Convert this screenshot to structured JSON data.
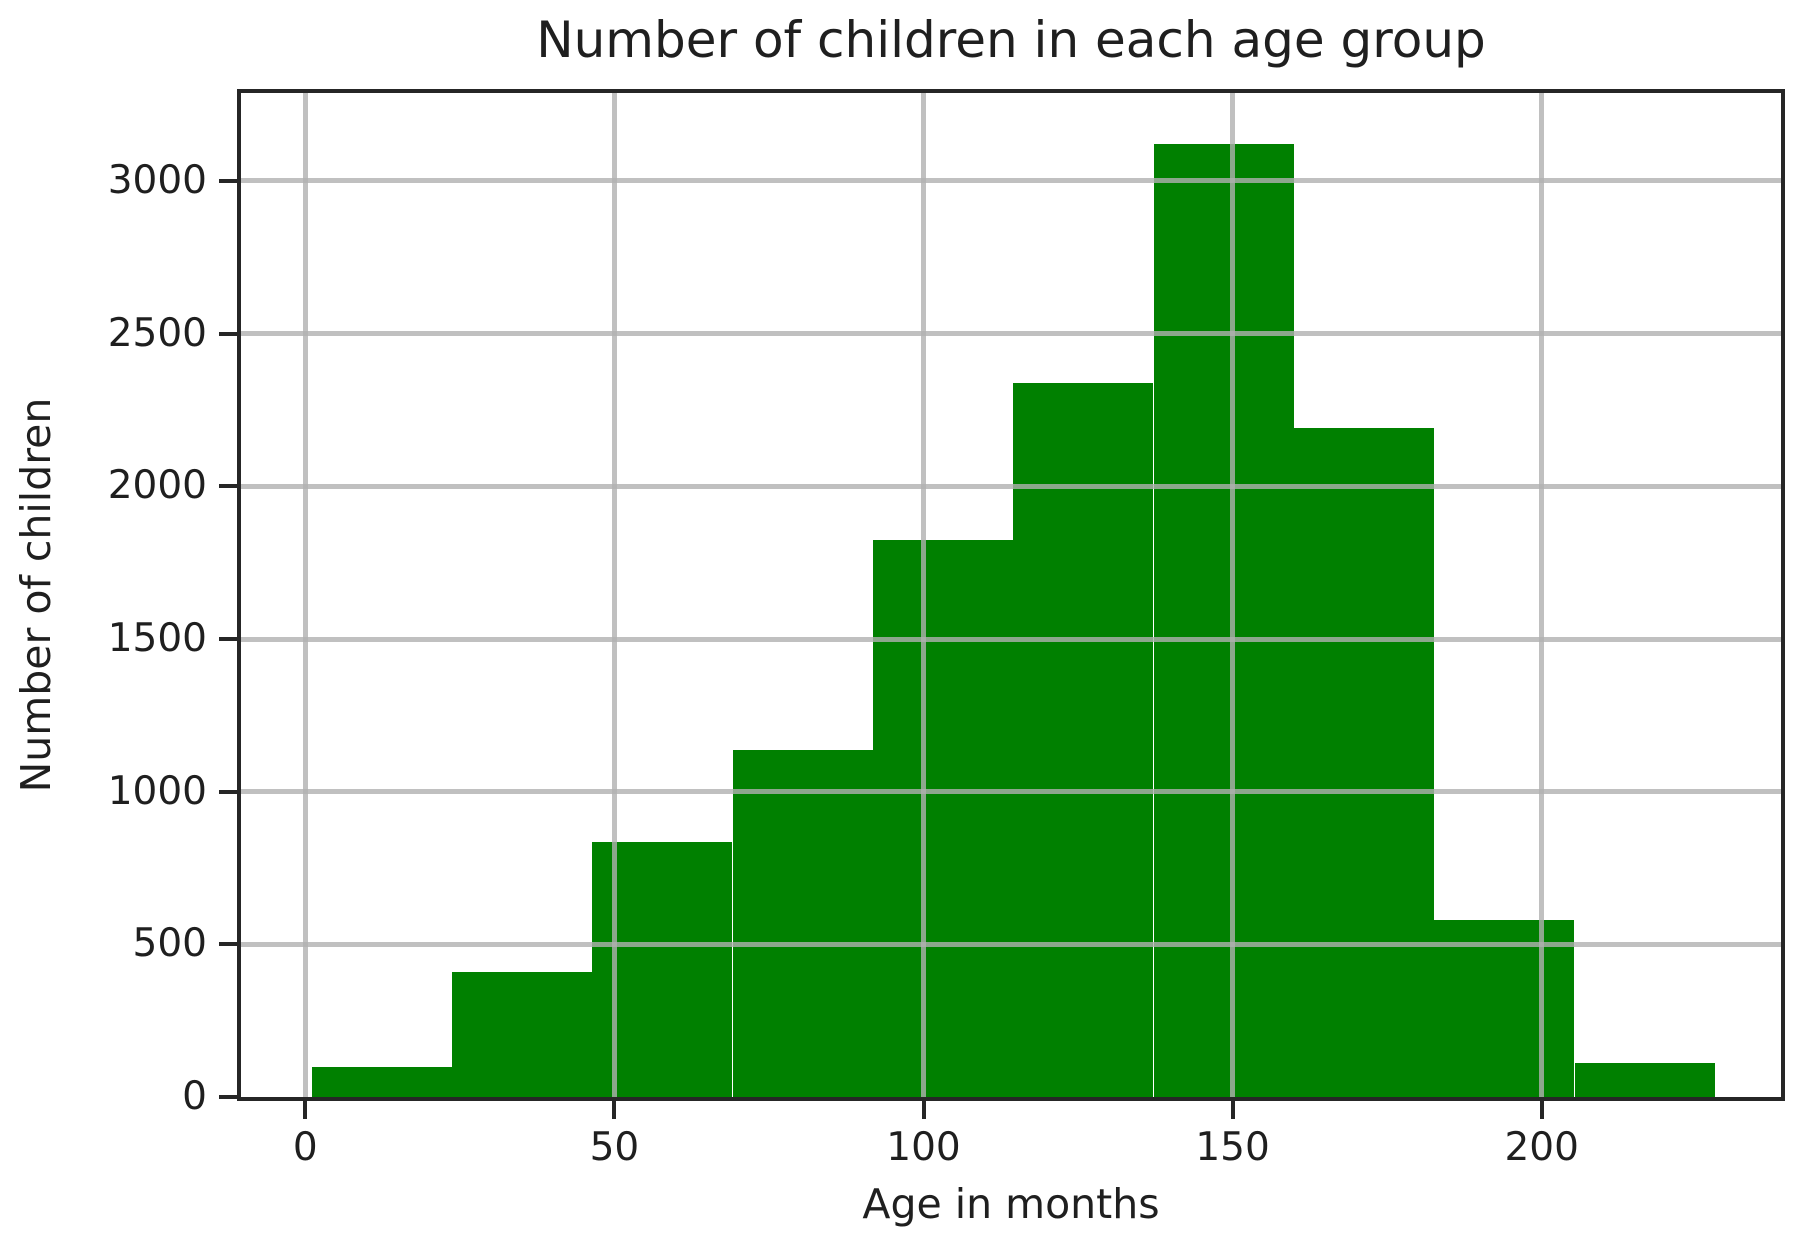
{
  "chart_data": {
    "type": "histogram",
    "title": "Number of children in each age group",
    "xlabel": "Age in months",
    "ylabel": "Number of children",
    "bar_color": "#008000",
    "grid": true,
    "grid_on_top_of_bars": true,
    "grid_color": "#b0b0b0",
    "grid_alpha": 0.8,
    "spine_color": "#262626",
    "background_color": "#ffffff",
    "x_ticks": [
      0,
      50,
      100,
      150,
      200
    ],
    "y_ticks": [
      0,
      500,
      1000,
      1500,
      2000,
      2500,
      3000
    ],
    "xlim": [
      -10.4,
      238.7
    ],
    "ylim": [
      0,
      3288
    ],
    "bin_edges": [
      1.0,
      23.7,
      46.4,
      69.1,
      91.8,
      114.5,
      137.2,
      159.9,
      182.6,
      205.3,
      228.0
    ],
    "counts": [
      100,
      410,
      835,
      1135,
      1825,
      2340,
      3120,
      2190,
      580,
      110
    ]
  }
}
